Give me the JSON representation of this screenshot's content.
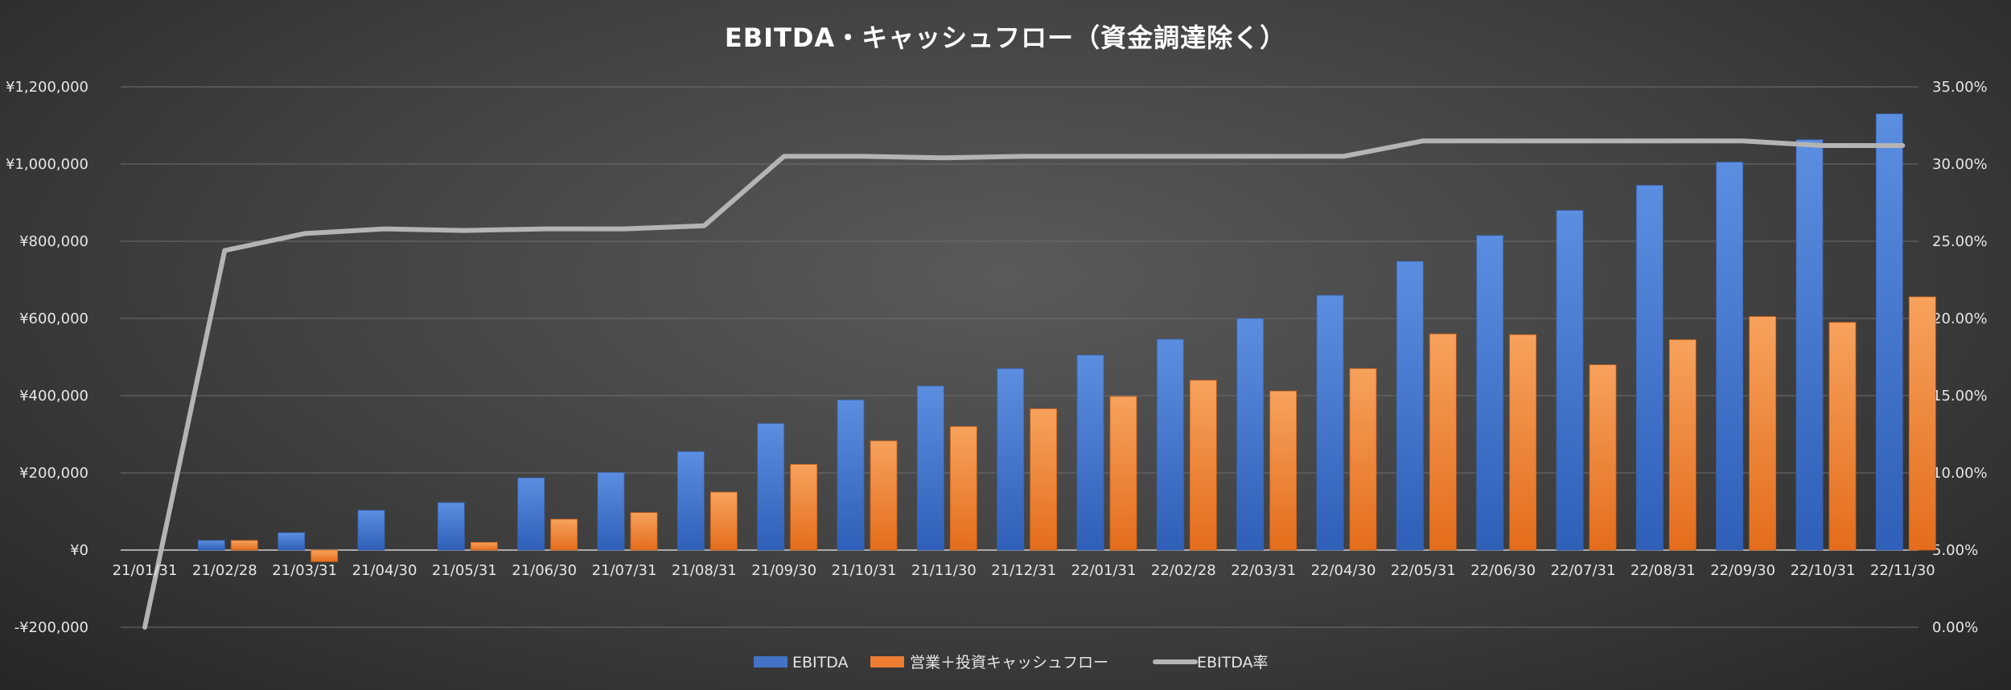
{
  "chart_data": {
    "type": "bar",
    "title": "EBITDA・キャッシュフロー（資金調達除く）",
    "categories": [
      "21/01/31",
      "21/02/28",
      "21/03/31",
      "21/04/30",
      "21/05/31",
      "21/06/30",
      "21/07/31",
      "21/08/31",
      "21/09/30",
      "21/10/31",
      "21/11/30",
      "21/12/31",
      "22/01/31",
      "22/02/28",
      "22/03/31",
      "22/04/30",
      "22/05/31",
      "22/06/30",
      "22/07/31",
      "22/08/31",
      "22/09/30",
      "22/10/31",
      "22/11/30"
    ],
    "series": [
      {
        "name": "EBITDA",
        "kind": "bar",
        "axis": "left",
        "color": "#4472C4",
        "values": [
          0,
          25000,
          45000,
          103000,
          123000,
          187000,
          201000,
          255000,
          328000,
          389000,
          425000,
          470000,
          505000,
          546000,
          600000,
          660000,
          748000,
          815000,
          880000,
          945000,
          1005000,
          1063000,
          1130000
        ]
      },
      {
        "name": "営業＋投資キャッシュフロー",
        "kind": "bar",
        "axis": "left",
        "color": "#ED7D31",
        "values": [
          0,
          25000,
          -30000,
          0,
          20000,
          80000,
          97000,
          150000,
          222000,
          283000,
          320000,
          366000,
          398000,
          440000,
          412000,
          470000,
          560000,
          558000,
          480000,
          545000,
          605000,
          590000,
          656000
        ]
      },
      {
        "name": "EBITDA率",
        "kind": "line",
        "axis": "right",
        "color": "#A5A5A5",
        "values": [
          0,
          24.4,
          25.5,
          25.8,
          25.7,
          25.8,
          25.8,
          26.0,
          30.5,
          30.5,
          30.4,
          30.5,
          30.5,
          30.5,
          30.5,
          30.5,
          31.5,
          31.5,
          31.5,
          31.5,
          31.5,
          31.2,
          31.2
        ]
      }
    ],
    "ylim_left": [
      -200000,
      1200000
    ],
    "yticks_left": [
      -200000,
      0,
      200000,
      400000,
      600000,
      800000,
      1000000,
      1200000
    ],
    "ytick_labels_left": [
      "-¥200,000",
      "¥0",
      "¥200,000",
      "¥400,000",
      "¥600,000",
      "¥800,000",
      "¥1,000,000",
      "¥1,200,000"
    ],
    "ylim_right": [
      0,
      35
    ],
    "yticks_right": [
      0,
      5,
      10,
      15,
      20,
      25,
      30,
      35
    ],
    "ytick_labels_right": [
      "0.00%",
      "5.00%",
      "10.00%",
      "15.00%",
      "20.00%",
      "25.00%",
      "30.00%",
      "35.00%"
    ],
    "legend_position": "bottom",
    "grid": true
  }
}
